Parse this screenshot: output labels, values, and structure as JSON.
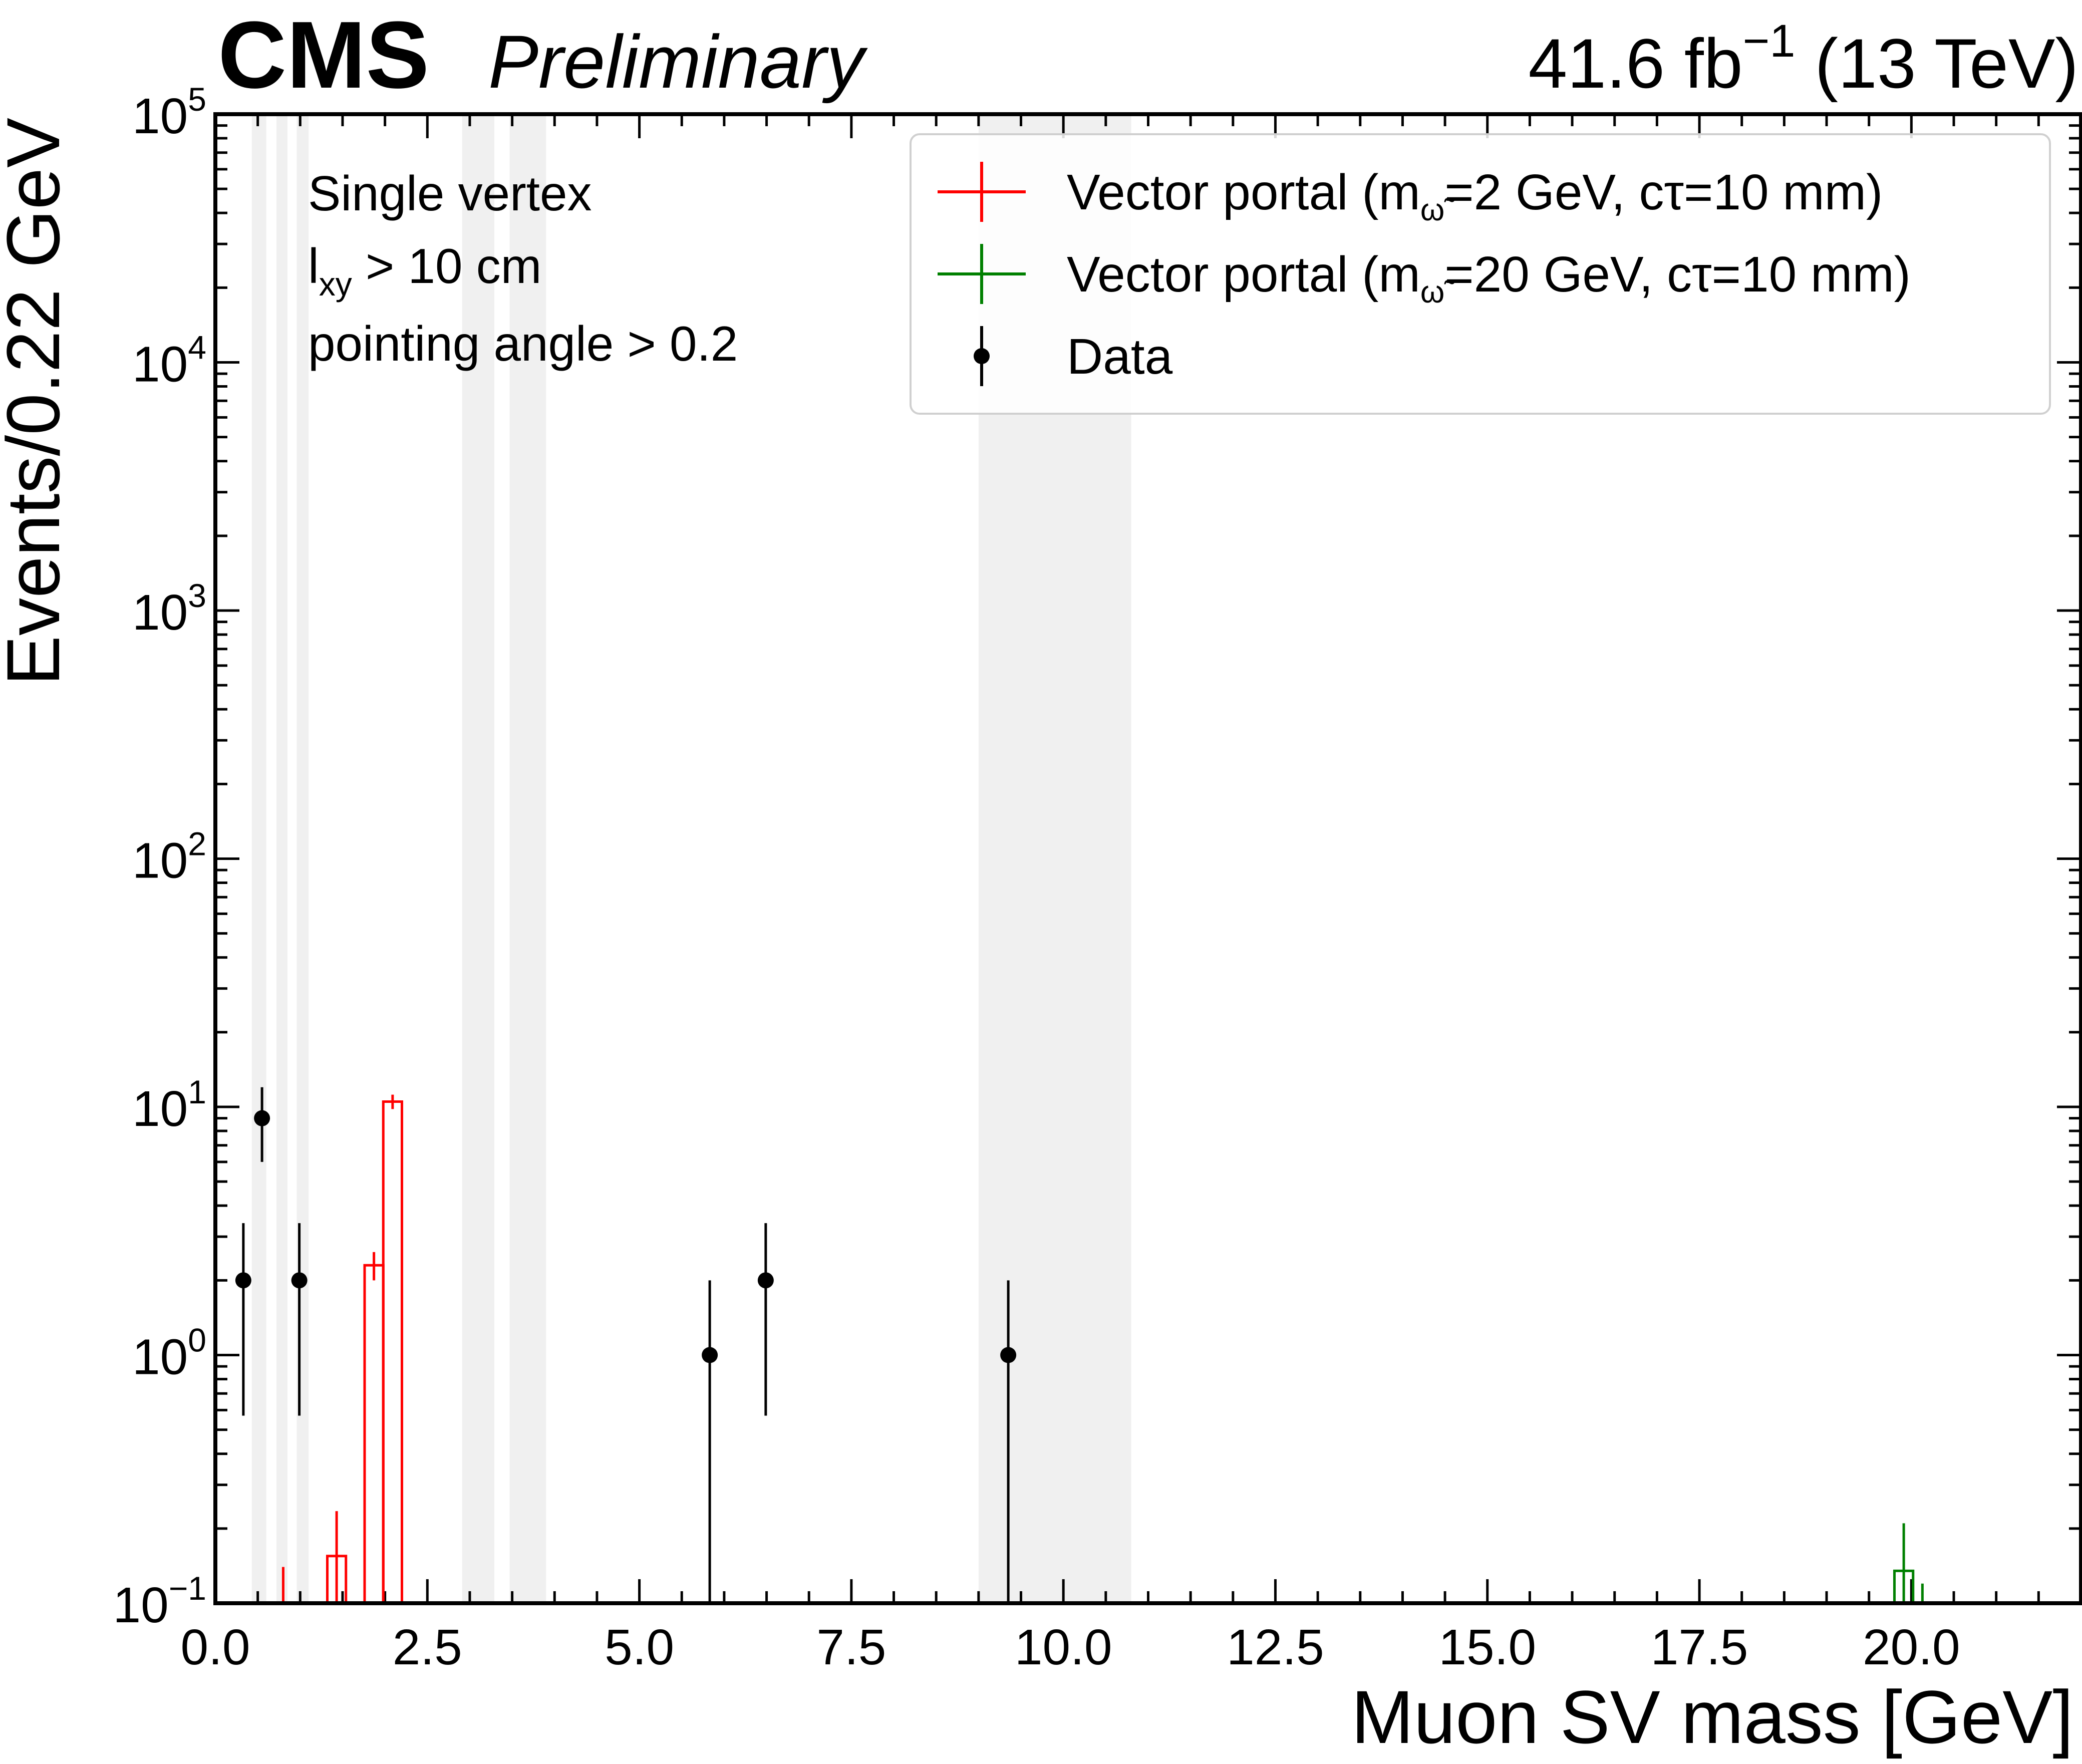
{
  "header": {
    "experiment": "CMS",
    "status": "Preliminary",
    "lumi_value": "41.6 fb",
    "lumi_exp": "−1",
    "energy": " (13 TeV)"
  },
  "annotations": {
    "line1": "Single vertex",
    "line2_main": "l",
    "line2_sub": "xy",
    "line2_rest": " >  10 cm",
    "line3": "pointing angle > 0.2"
  },
  "chart_data": {
    "type": "histogram",
    "xlabel": "Muon SV mass [GeV]",
    "ylabel": "Events/0.22 GeV",
    "xlim": [
      0,
      22
    ],
    "ylim": [
      0.1,
      100000
    ],
    "yscale": "log",
    "x_ticks": [
      "0.0",
      "2.5",
      "5.0",
      "7.5",
      "10.0",
      "12.5",
      "15.0",
      "17.5",
      "20.0"
    ],
    "y_ticks": [
      {
        "base": "10",
        "exp": "−1"
      },
      {
        "base": "10",
        "exp": "0"
      },
      {
        "base": "10",
        "exp": "1"
      },
      {
        "base": "10",
        "exp": "2"
      },
      {
        "base": "10",
        "exp": "3"
      },
      {
        "base": "10",
        "exp": "4"
      },
      {
        "base": "10",
        "exp": "5"
      }
    ],
    "bin_width": 0.22,
    "masked_regions": [
      [
        0.43,
        0.6
      ],
      [
        0.72,
        0.85
      ],
      [
        0.96,
        1.1
      ],
      [
        2.91,
        3.29
      ],
      [
        3.47,
        3.9
      ],
      [
        9.0,
        10.8
      ]
    ],
    "legend": {
      "position": "top-right",
      "entries": [
        {
          "text": "Vector portal (m",
          "sub": "ω̃",
          "tail": "=2 GeV, cτ=10 mm)",
          "color": "#ff0000",
          "marker": "cross"
        },
        {
          "text": "Vector portal (m",
          "sub": "ω̃",
          "tail": "=20 GeV, cτ=10 mm)",
          "color": "#008000",
          "marker": "cross"
        },
        {
          "text": "Data",
          "sub": "",
          "tail": "",
          "color": "#000000",
          "marker": "point"
        }
      ]
    },
    "series": [
      {
        "name": "Vector portal (mω̃=2 GeV, cτ=10 mm)",
        "color": "#ff0000",
        "style": "step",
        "bins": [
          {
            "x0": 1.32,
            "x1": 1.54,
            "y": 0.155,
            "err": 0.08
          },
          {
            "x0": 1.76,
            "x1": 1.98,
            "y": 2.3,
            "err": 0.3
          },
          {
            "x0": 1.98,
            "x1": 2.2,
            "y": 10.5,
            "err": 0.7
          }
        ],
        "error_only": [
          {
            "x": 0.8,
            "y": 0.07,
            "err": 0.07
          }
        ]
      },
      {
        "name": "Vector portal (mω̃=20 GeV, cτ=10 mm)",
        "color": "#008000",
        "style": "step",
        "bins": [
          {
            "x0": 19.8,
            "x1": 20.02,
            "y": 0.135,
            "err": 0.075
          }
        ],
        "error_only": [
          {
            "x": 20.13,
            "y": 0.09,
            "err": 0.03
          }
        ]
      },
      {
        "name": "Data",
        "color": "#000000",
        "style": "points",
        "points": [
          {
            "x": 0.33,
            "y": 2,
            "lo": 0.57,
            "hi": 3.4
          },
          {
            "x": 0.55,
            "y": 9,
            "lo": 6.0,
            "hi": 12.0
          },
          {
            "x": 0.99,
            "y": 2,
            "lo": 0.57,
            "hi": 3.4
          },
          {
            "x": 5.83,
            "y": 1,
            "lo": 0.1,
            "hi": 2.0
          },
          {
            "x": 6.49,
            "y": 2,
            "lo": 0.57,
            "hi": 3.4
          },
          {
            "x": 9.35,
            "y": 1,
            "lo": 0.1,
            "hi": 2.0
          }
        ]
      }
    ]
  }
}
